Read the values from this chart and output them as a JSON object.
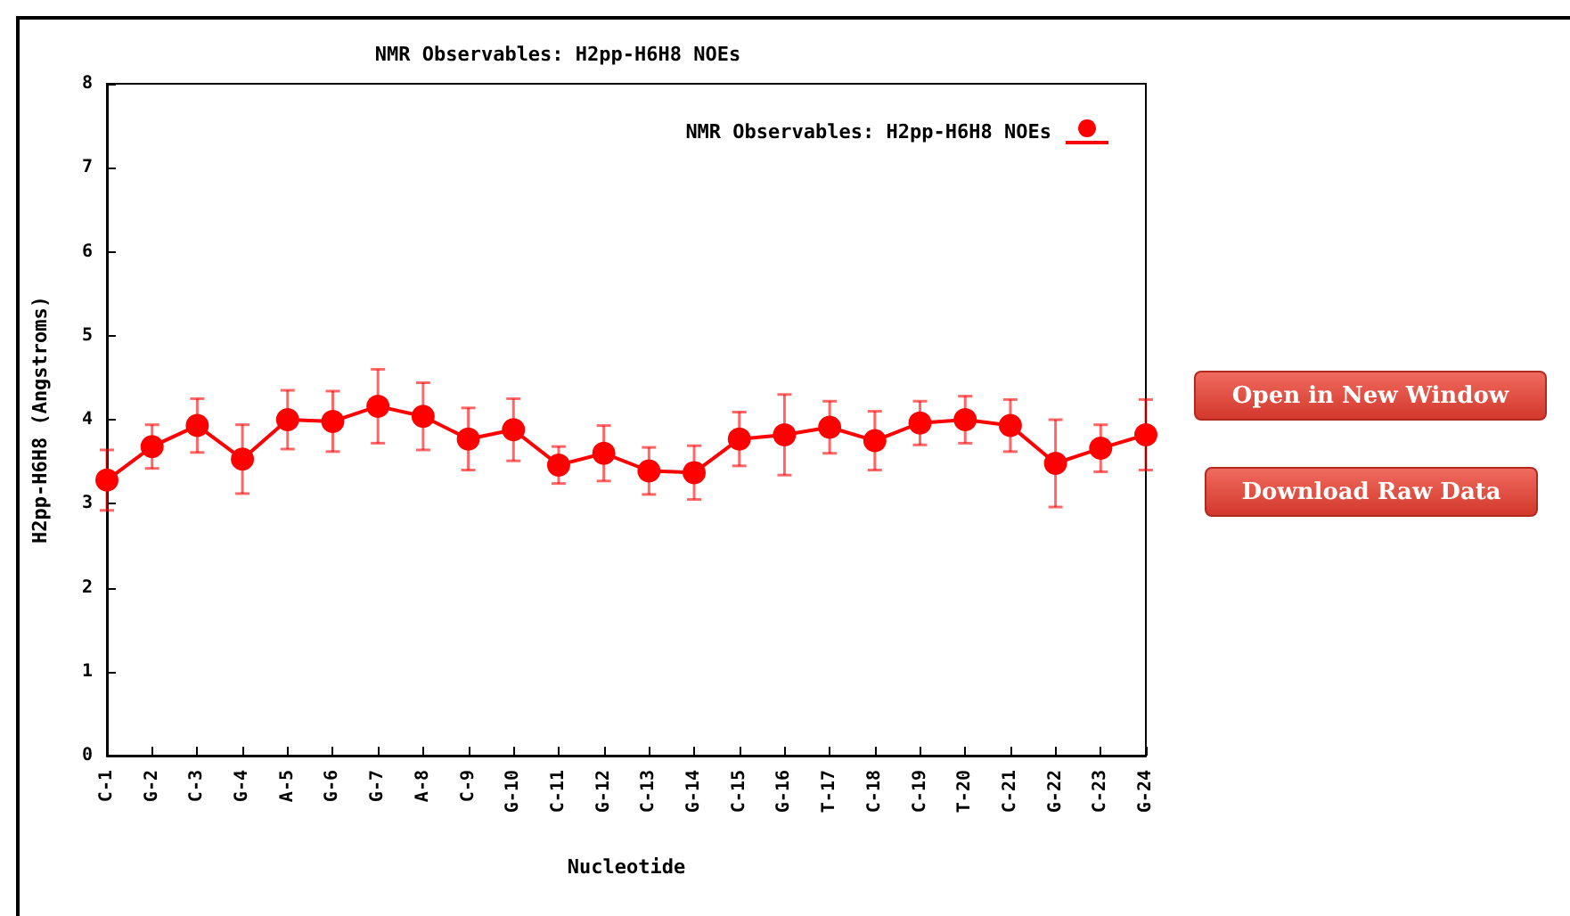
{
  "chart_data": {
    "type": "line",
    "title": "NMR Observables: H2pp-H6H8 NOEs",
    "xlabel": "Nucleotide",
    "ylabel": "H2pp-H6H8 (Angstroms)",
    "categories": [
      "C-1",
      "G-2",
      "C-3",
      "G-4",
      "A-5",
      "G-6",
      "G-7",
      "A-8",
      "C-9",
      "G-10",
      "C-11",
      "G-12",
      "C-13",
      "G-14",
      "C-15",
      "G-16",
      "T-17",
      "C-18",
      "C-19",
      "T-20",
      "C-21",
      "G-22",
      "C-23",
      "G-24"
    ],
    "series": [
      {
        "name": "NMR Observables: H2pp-H6H8 NOEs",
        "color": "#ff0000",
        "values": [
          3.28,
          3.68,
          3.93,
          3.53,
          4.0,
          3.98,
          4.16,
          4.04,
          3.77,
          3.88,
          3.46,
          3.6,
          3.39,
          3.37,
          3.77,
          3.82,
          3.91,
          3.75,
          3.96,
          4.0,
          3.93,
          3.48,
          3.66,
          3.82
        ],
        "errors": [
          0.36,
          0.26,
          0.32,
          0.41,
          0.35,
          0.36,
          0.44,
          0.4,
          0.37,
          0.37,
          0.22,
          0.33,
          0.28,
          0.32,
          0.32,
          0.48,
          0.31,
          0.35,
          0.26,
          0.28,
          0.31,
          0.52,
          0.28,
          0.42
        ]
      }
    ],
    "ylim": [
      0,
      8
    ],
    "yticks": [
      0,
      1,
      2,
      3,
      4,
      5,
      6,
      7,
      8
    ],
    "grid": false,
    "legend": "top right",
    "marker": "circle",
    "line_style": "solid",
    "annotations": [
      "Open in New Window",
      "Download Raw Data"
    ]
  }
}
